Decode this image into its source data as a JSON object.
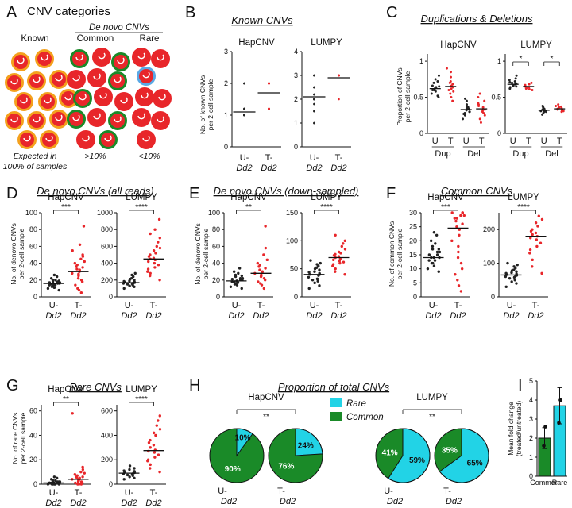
{
  "colors": {
    "red": "#e8262a",
    "black": "#222222",
    "cyan": "#22d3e6",
    "green": "#1a8a28",
    "orange": "#f4a11d",
    "blue": "#5aa9e6"
  },
  "panelA": {
    "letter": "A",
    "title": "CNV categories",
    "denovo_header": "De novo CNVs",
    "col_labels": [
      "Known",
      "Common",
      "Rare"
    ],
    "captions": [
      [
        "Expected in",
        "100% of samples"
      ],
      [
        ">10%"
      ],
      [
        "<10%"
      ]
    ]
  },
  "chart_data": [
    {
      "id": "B",
      "type": "scatter",
      "title": "Known CNVs",
      "ylabel": [
        "No. of known CNVs",
        "per 2-cell sample"
      ],
      "groups": [
        "U-|Dd2",
        "T-|Dd2"
      ],
      "subplots": [
        {
          "label": "HapCNV",
          "ylim": [
            0,
            3
          ],
          "yticks": [
            0,
            1,
            2,
            3
          ],
          "medians": [
            1.1,
            1.7
          ],
          "points": [
            [
              1,
              1,
              1,
              1,
              1,
              1,
              1,
              1,
              1,
              1,
              1,
              1,
              1,
              1,
              1,
              1,
              1,
              1,
              1,
              1,
              1.2,
              1.2,
              1.2,
              1.2,
              1.2,
              2,
              2,
              2,
              2
            ],
            [
              1.2,
              1.2,
              1.2,
              1.2,
              1.2,
              1.2,
              1.2,
              1.2,
              2,
              2,
              2,
              2,
              2,
              2,
              2,
              2,
              2,
              2,
              2,
              2,
              2,
              2,
              2,
              2,
              2,
              2,
              2,
              2
            ]
          ]
        },
        {
          "label": "LUMPY",
          "ylim": [
            0,
            4
          ],
          "yticks": [
            0,
            1,
            2,
            3,
            4
          ],
          "medians": [
            2.1,
            2.9
          ],
          "points": [
            [
              1,
              1,
              1,
              1.5,
              1.5,
              1.5,
              1.8,
              1.8,
              2,
              2,
              2,
              2,
              2,
              2,
              2,
              2.2,
              2.2,
              2.2,
              2.5,
              2.5,
              2.5,
              2.5,
              3,
              3,
              3,
              3
            ],
            [
              2,
              3,
              3,
              3,
              3,
              3,
              3,
              3,
              3,
              3,
              3,
              3,
              3,
              3,
              3,
              3,
              3,
              3,
              3,
              3,
              3,
              3,
              3,
              3,
              3,
              3
            ]
          ]
        }
      ]
    },
    {
      "id": "C",
      "type": "scatter",
      "title": "Duplications & Deletions",
      "ylabel": [
        "Proportion of CNVs",
        "per 2-cell sample"
      ],
      "categories": [
        "U",
        "T",
        "U",
        "T"
      ],
      "groups": [
        "Dup",
        "Del"
      ],
      "subplots": [
        {
          "label": "HapCNV",
          "ylim": [
            0,
            1.1
          ],
          "yticks": [
            0,
            0.5,
            1
          ],
          "sig": [],
          "medians": [
            0.62,
            0.65,
            0.33,
            0.34
          ],
          "points": [
            [
              0.5,
              0.55,
              0.58,
              0.6,
              0.62,
              0.64,
              0.66,
              0.7,
              0.75,
              0.8,
              0.52,
              0.6,
              0.65,
              0.72
            ],
            [
              0.45,
              0.5,
              0.55,
              0.6,
              0.64,
              0.68,
              0.72,
              0.78,
              0.85,
              0.9,
              0.62,
              0.66,
              0.7,
              0.58
            ],
            [
              0.2,
              0.25,
              0.28,
              0.3,
              0.32,
              0.35,
              0.38,
              0.4,
              0.45,
              0.48,
              0.3,
              0.34,
              0.27,
              0.36
            ],
            [
              0.15,
              0.2,
              0.25,
              0.3,
              0.33,
              0.36,
              0.4,
              0.45,
              0.5,
              0.55,
              0.28,
              0.32,
              0.38,
              0.42
            ]
          ]
        },
        {
          "label": "LUMPY",
          "ylim": [
            0,
            1.1
          ],
          "yticks": [
            0,
            0.5,
            1
          ],
          "sig": [
            "*",
            "*"
          ],
          "medians": [
            0.68,
            0.65,
            0.32,
            0.34
          ],
          "points": [
            [
              0.62,
              0.65,
              0.66,
              0.68,
              0.7,
              0.72,
              0.74,
              0.76,
              0.8,
              0.64,
              0.69,
              0.71
            ],
            [
              0.6,
              0.62,
              0.63,
              0.65,
              0.66,
              0.68,
              0.7,
              0.64,
              0.67,
              0.61
            ],
            [
              0.26,
              0.28,
              0.3,
              0.31,
              0.32,
              0.33,
              0.34,
              0.36,
              0.38,
              0.3
            ],
            [
              0.3,
              0.31,
              0.32,
              0.33,
              0.34,
              0.35,
              0.36,
              0.37,
              0.38,
              0.4,
              0.33
            ]
          ]
        }
      ]
    },
    {
      "id": "D",
      "type": "scatter",
      "title": "De novo CNVs (all reads)",
      "ylabel": [
        "No. of denovo CNVs",
        "per 2-cell sample"
      ],
      "groups": [
        "U-|Dd2",
        "T-|Dd2"
      ],
      "subplots": [
        {
          "label": "HapCNV",
          "ylim": [
            0,
            100
          ],
          "yticks": [
            0,
            20,
            40,
            60,
            80,
            100
          ],
          "sig": "***",
          "medians": [
            16,
            30
          ],
          "points": [
            [
              8,
              10,
              11,
              12,
              13,
              14,
              14,
              15,
              15,
              16,
              16,
              17,
              17,
              18,
              18,
              19,
              20,
              20,
              22,
              24,
              26
            ],
            [
              5,
              8,
              10,
              14,
              18,
              20,
              22,
              25,
              27,
              28,
              30,
              32,
              33,
              35,
              36,
              38,
              40,
              42,
              45,
              48,
              50,
              55,
              62,
              84
            ]
          ]
        },
        {
          "label": "LUMPY",
          "ylim": [
            0,
            1000
          ],
          "yticks": [
            0,
            200,
            400,
            600,
            800,
            1000
          ],
          "sig": "****",
          "medians": [
            170,
            450
          ],
          "points": [
            [
              100,
              120,
              130,
              140,
              150,
              155,
              160,
              165,
              170,
              175,
              180,
              185,
              190,
              200,
              210,
              220,
              240,
              260,
              280
            ],
            [
              200,
              250,
              280,
              300,
              330,
              350,
              380,
              400,
              420,
              440,
              450,
              460,
              480,
              500,
              520,
              550,
              580,
              600,
              650,
              700,
              750,
              800,
              920
            ]
          ]
        }
      ]
    },
    {
      "id": "E",
      "type": "scatter",
      "title": "De novo CNVs (down-sampled)",
      "ylabel": [
        "No. of denovo CNVs",
        "per 2-cell sample"
      ],
      "groups": [
        "U-|Dd2",
        "T-|Dd2"
      ],
      "subplots": [
        {
          "label": "HapCNV",
          "ylim": [
            0,
            100
          ],
          "yticks": [
            0,
            20,
            40,
            60,
            80,
            100
          ],
          "sig": "**",
          "medians": [
            19,
            28
          ],
          "points": [
            [
              10,
              12,
              14,
              15,
              16,
              17,
              18,
              18,
              19,
              20,
              20,
              21,
              22,
              22,
              24,
              25,
              26,
              28,
              30,
              34
            ],
            [
              10,
              14,
              16,
              18,
              20,
              22,
              24,
              25,
              26,
              28,
              29,
              30,
              32,
              34,
              36,
              38,
              40,
              44,
              50,
              58,
              84
            ]
          ]
        },
        {
          "label": "LUMPY",
          "ylim": [
            0,
            150
          ],
          "yticks": [
            0,
            50,
            100,
            150
          ],
          "sig": "****",
          "medians": [
            40,
            70
          ],
          "points": [
            [
              15,
              20,
              25,
              28,
              30,
              32,
              35,
              38,
              40,
              40,
              42,
              44,
              45,
              48,
              50,
              52,
              55,
              58,
              60,
              65
            ],
            [
              40,
              45,
              50,
              55,
              58,
              60,
              62,
              64,
              66,
              68,
              70,
              72,
              74,
              76,
              78,
              80,
              85,
              90,
              95,
              100,
              110
            ]
          ]
        }
      ]
    },
    {
      "id": "F",
      "type": "scatter",
      "title": "Common CNVs",
      "ylabel": [
        "No. of common CNVs",
        "per 2-cell sample"
      ],
      "groups": [
        "U-|Dd2",
        "T-|Dd2"
      ],
      "subplots": [
        {
          "label": "HapCNV",
          "ylim": [
            0,
            30
          ],
          "yticks": [
            0,
            5,
            10,
            15,
            20,
            25,
            30
          ],
          "sig": "***",
          "medians": [
            14,
            24.5
          ],
          "points": [
            [
              9,
              10,
              11,
              12,
              12,
              13,
              13,
              14,
              14,
              14,
              15,
              15,
              16,
              16,
              17,
              17,
              18,
              19,
              20,
              22,
              23
            ],
            [
              2,
              4,
              6,
              8,
              10,
              12,
              14,
              16,
              18,
              20,
              22,
              24,
              25,
              26,
              27,
              28,
              28,
              29,
              29,
              30,
              30,
              30
            ]
          ]
        },
        {
          "label": "LUMPY",
          "ylim": [
            0,
            250
          ],
          "yticks": [
            0,
            100,
            200
          ],
          "sig": "****",
          "medians": [
            65,
            180
          ],
          "points": [
            [
              30,
              40,
              45,
              50,
              55,
              58,
              60,
              62,
              64,
              66,
              68,
              70,
              72,
              75,
              78,
              80,
              85,
              90,
              95,
              100
            ],
            [
              70,
              90,
              110,
              130,
              140,
              150,
              160,
              170,
              175,
              180,
              185,
              190,
              195,
              200,
              210,
              220,
              230,
              240
            ]
          ]
        }
      ]
    },
    {
      "id": "G",
      "type": "scatter",
      "title": "Rare CNVs",
      "ylabel": [
        "No. of rare CNVs",
        "per 2-cell sample"
      ],
      "groups": [
        "U-|Dd2",
        "T-|Dd2"
      ],
      "subplots": [
        {
          "label": "HapCNV",
          "ylim": [
            0,
            65
          ],
          "yticks": [
            0,
            20,
            40,
            60
          ],
          "sig": "**",
          "medians": [
            1,
            4
          ],
          "points": [
            [
              0,
              0,
              0,
              0,
              0,
              0,
              1,
              1,
              1,
              1,
              1,
              1,
              2,
              2,
              2,
              2,
              3,
              3,
              4,
              5,
              6
            ],
            [
              0,
              0,
              0,
              1,
              1,
              2,
              2,
              3,
              3,
              4,
              4,
              5,
              5,
              6,
              6,
              7,
              8,
              9,
              10,
              12,
              14,
              58
            ]
          ]
        },
        {
          "label": "LUMPY",
          "ylim": [
            0,
            650
          ],
          "yticks": [
            0,
            200,
            400,
            600
          ],
          "sig": "****",
          "medians": [
            90,
            275
          ],
          "points": [
            [
              40,
              50,
              60,
              70,
              75,
              80,
              85,
              90,
              95,
              100,
              105,
              110,
              120,
              130,
              150
            ],
            [
              100,
              130,
              160,
              190,
              200,
              220,
              240,
              260,
              270,
              280,
              300,
              320,
              340,
              360,
              400,
              420,
              450,
              480,
              520,
              560
            ]
          ]
        }
      ]
    },
    {
      "id": "H",
      "type": "pie",
      "title": "Proportion of total CNVs",
      "legend": [
        "Rare",
        "Common"
      ],
      "subplots": [
        {
          "label": "HapCNV",
          "sig": "**",
          "pies": [
            {
              "group": "U-|Dd2",
              "rare": 10,
              "common": 90
            },
            {
              "group": "T-|Dd2",
              "rare": 24,
              "common": 76
            }
          ]
        },
        {
          "label": "LUMPY",
          "sig": "**",
          "pies": [
            {
              "group": "U-|Dd2",
              "rare": 59,
              "common": 41
            },
            {
              "group": "T-|Dd2",
              "rare": 65,
              "common": 35
            }
          ]
        }
      ]
    },
    {
      "id": "I",
      "type": "bar",
      "ylabel": [
        "Mean fold change",
        "(treated/untreated)"
      ],
      "categories": [
        "Common",
        "Rare"
      ],
      "values": [
        2.0,
        3.7
      ],
      "errors": [
        0.55,
        0.95
      ],
      "points": [
        [
          1.6,
          2.6
        ],
        [
          2.8,
          4.0
        ]
      ],
      "ylim": [
        0,
        5
      ],
      "yticks": [
        0,
        1,
        2,
        3,
        4,
        5
      ]
    }
  ]
}
